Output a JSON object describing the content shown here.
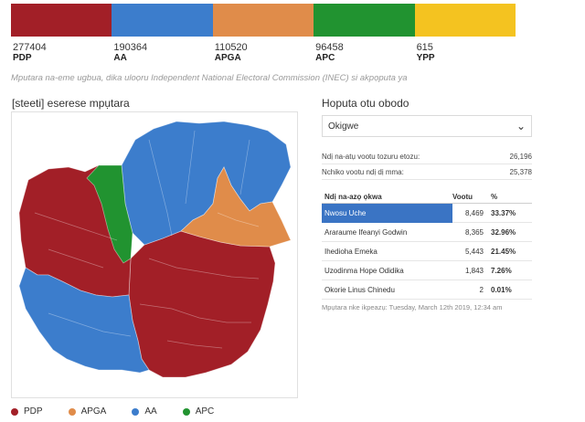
{
  "parties": [
    {
      "votes": "277404",
      "name": "PDP",
      "color": "#a21f27"
    },
    {
      "votes": "190364",
      "name": "AA",
      "color": "#3c7dcc"
    },
    {
      "votes": "110520",
      "name": "APGA",
      "color": "#e08c4a"
    },
    {
      "votes": "96458",
      "name": "APC",
      "color": "#219330"
    },
    {
      "votes": "615",
      "name": "YPP",
      "color": "#f4c320"
    }
  ],
  "source_note": "Mputara na-eme ugbua, dika uloọru Independent National Electoral Commission (INEC) si akpọputa ya",
  "map": {
    "title": "[steeti] eserese mpụtara",
    "legend": [
      {
        "label": "PDP",
        "color": "#a21f27"
      },
      {
        "label": "APGA",
        "color": "#e08c4a"
      },
      {
        "label": "AA",
        "color": "#3c7dcc"
      },
      {
        "label": "APC",
        "color": "#219330"
      }
    ]
  },
  "panel": {
    "title": "Hoputa otu obodo",
    "selected": "Okigwe",
    "stats": [
      {
        "label": "Ndị na-atụ vootu tozuru etozu:",
        "value": "26,196"
      },
      {
        "label": "Nchiko vootu ndị dị mma:",
        "value": "25,378"
      }
    ],
    "table": {
      "headers": {
        "name": "Ndị na-azọ ọkwa",
        "votes": "Vootu",
        "pct": "%"
      },
      "rows": [
        {
          "name": "Nwosu Uche",
          "votes": "8,469",
          "pct": "33.37%"
        },
        {
          "name": "Araraume Ifeanyi Godwin",
          "votes": "8,365",
          "pct": "32.96%"
        },
        {
          "name": "Ihedioha Emeka",
          "votes": "5,443",
          "pct": "21.45%"
        },
        {
          "name": "Uzodinma Hope Odidika",
          "votes": "1,843",
          "pct": "7.26%"
        },
        {
          "name": "Okorie Linus Chinedu",
          "votes": "2",
          "pct": "0.01%"
        }
      ]
    },
    "updated": "Mpụtara nke ikpeazụ: Tuesday, March 12th 2019, 12:34 am"
  }
}
